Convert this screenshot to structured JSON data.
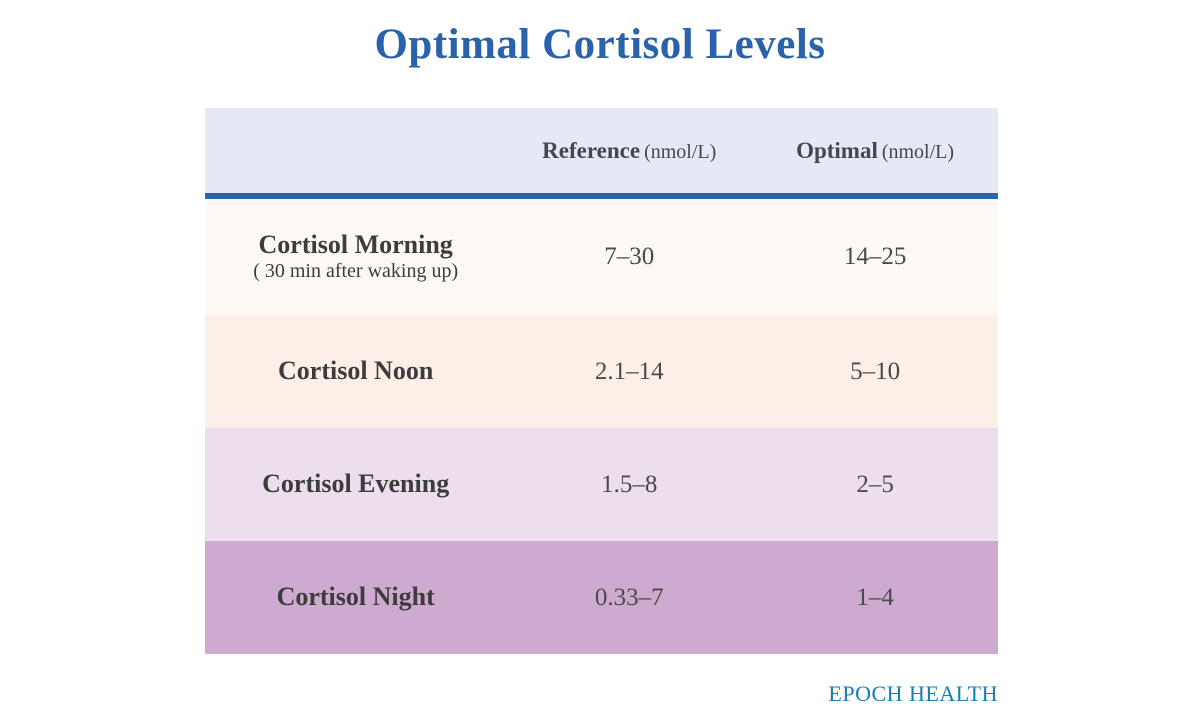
{
  "title": "Optimal Cortisol Levels",
  "brand": "EPOCH HEALTH",
  "table": {
    "columns": [
      {
        "label": "Reference",
        "unit": "(nmol/L)"
      },
      {
        "label": "Optimal",
        "unit": "(nmol/L)"
      }
    ],
    "rows": [
      {
        "label": "Cortisol Morning",
        "sublabel": "( 30 min after waking up)",
        "reference": "7–30",
        "optimal": "14–25"
      },
      {
        "label": "Cortisol Noon",
        "sublabel": "",
        "reference": "2.1–14",
        "optimal": "5–10"
      },
      {
        "label": "Cortisol Evening",
        "sublabel": "",
        "reference": "1.5–8",
        "optimal": "2–5"
      },
      {
        "label": "Cortisol Night",
        "sublabel": "",
        "reference": "0.33–7",
        "optimal": "1–4"
      }
    ]
  },
  "colors": {
    "title_blue": "#2a62ab",
    "header_bg": "#e5e9f4",
    "divider_blue": "#2b66ad",
    "row_morning_bg": "#fdf8f4",
    "row_noon_bg": "#fcefe7",
    "row_evening_bg": "#ecdeec",
    "row_night_bg": "#cfaad0",
    "label_text": "#3c3c3c",
    "value_text": "#4a4a4a",
    "brand_teal": "#1480b1"
  },
  "chart_data": {
    "type": "table",
    "title": "Optimal Cortisol Levels",
    "columns": [
      "",
      "Reference (nmol/L)",
      "Optimal (nmol/L)"
    ],
    "rows": [
      [
        "Cortisol Morning ( 30 min after waking up)",
        "7–30",
        "14–25"
      ],
      [
        "Cortisol Noon",
        "2.1–14",
        "5–10"
      ],
      [
        "Cortisol Evening",
        "1.5–8",
        "2–5"
      ],
      [
        "Cortisol Night",
        "0.33–7",
        "1–4"
      ]
    ]
  }
}
